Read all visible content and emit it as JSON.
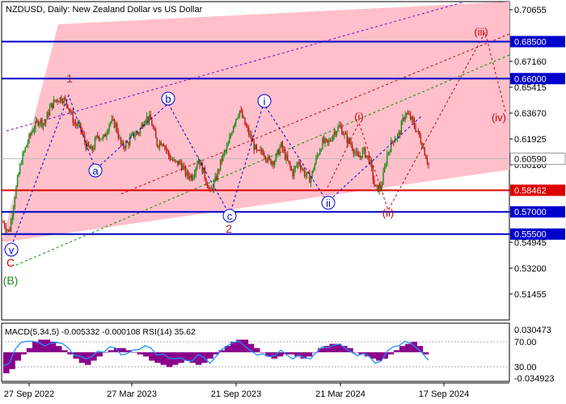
{
  "chart_data": {
    "type": "candlestick",
    "title": "NZDUSD, Daily:  New Zealand Dollar vs US Dollar",
    "price_axis": {
      "ticks": [
        "0.70655",
        "0.68500",
        "0.67160",
        "0.66000",
        "0.65415",
        "0.63670",
        "0.61925",
        "0.60590",
        "0.60180",
        "0.58462",
        "0.57000",
        "0.55500",
        "0.54945",
        "0.53200",
        "0.51455"
      ],
      "range": [
        0.497,
        0.712
      ]
    },
    "time_axis": {
      "ticks": [
        "27 Sep 2022",
        "27 Mar 2023",
        "21 Sep 2023",
        "21 Mar 2024",
        "17 Sep 2024"
      ]
    },
    "horizontal_levels": [
      {
        "value": 0.685,
        "label": "0.68500",
        "color": "#0000cc"
      },
      {
        "value": 0.66,
        "label": "0.66000",
        "color": "#0000cc"
      },
      {
        "value": 0.5846,
        "label": "0.58462",
        "color": "#dd0000"
      },
      {
        "value": 0.57,
        "label": "0.57000",
        "color": "#0000cc"
      },
      {
        "value": 0.555,
        "label": "0.55500",
        "color": "#0000cc"
      }
    ],
    "current_price": {
      "value": 0.6059,
      "label": "0.60590"
    },
    "wave_labels": [
      {
        "text": "1",
        "color": "#b22222"
      },
      {
        "text": "2",
        "color": "#b22222"
      },
      {
        "text": "C",
        "color": "#cc0000"
      },
      {
        "text": "(B)",
        "color": "#228b22"
      },
      {
        "text": "v",
        "color": "#0000cc"
      },
      {
        "text": "a",
        "color": "#0000cc"
      },
      {
        "text": "b",
        "color": "#0000cc"
      },
      {
        "text": "c",
        "color": "#0000cc"
      },
      {
        "text": "i",
        "color": "#0000cc"
      },
      {
        "text": "ii",
        "color": "#0000cc"
      },
      {
        "text": "(i)",
        "color": "#cc0000"
      },
      {
        "text": "(ii)",
        "color": "#cc0000"
      },
      {
        "text": "(iii)",
        "color": "#cc0000"
      },
      {
        "text": "(iv)",
        "color": "#cc0000"
      }
    ],
    "price_path": [
      0.563,
      0.556,
      0.582,
      0.604,
      0.616,
      0.626,
      0.632,
      0.63,
      0.641,
      0.646,
      0.647,
      0.642,
      0.63,
      0.627,
      0.615,
      0.611,
      0.622,
      0.619,
      0.631,
      0.629,
      0.614,
      0.616,
      0.622,
      0.624,
      0.634,
      0.632,
      0.616,
      0.618,
      0.608,
      0.603,
      0.603,
      0.595,
      0.594,
      0.606,
      0.596,
      0.583,
      0.592,
      0.606,
      0.614,
      0.63,
      0.639,
      0.628,
      0.619,
      0.609,
      0.611,
      0.604,
      0.605,
      0.615,
      0.605,
      0.596,
      0.604,
      0.596,
      0.592,
      0.606,
      0.617,
      0.616,
      0.624,
      0.628,
      0.62,
      0.615,
      0.606,
      0.611,
      0.605,
      0.585,
      0.587,
      0.609,
      0.619,
      0.622,
      0.637,
      0.633,
      0.625,
      0.615,
      0.602
    ],
    "macd": {
      "title": "MACD(5,34,5) -0.005332 -0.000108 RSI(14) 35.62",
      "axis_labels": [
        "0.030473",
        "70.00",
        "30.00",
        "-0.034923"
      ],
      "histogram": [
        -10,
        -8,
        -4,
        -1,
        2,
        5,
        6,
        6,
        5,
        3,
        1,
        -1,
        -3,
        -5,
        -6,
        -4,
        -2,
        0,
        1,
        2,
        2,
        1,
        0,
        -1,
        -2,
        -4,
        -5,
        -6,
        -7,
        -6,
        -5,
        -4,
        -5,
        -6,
        -5,
        -3,
        -1,
        1,
        3,
        5,
        6,
        6,
        4,
        2,
        0,
        -2,
        -3,
        -2,
        -1,
        -1,
        -2,
        -3,
        -2,
        0,
        2,
        3,
        4,
        4,
        3,
        2,
        0,
        -1,
        -2,
        -3,
        -4,
        -3,
        -1,
        1,
        3,
        4,
        5,
        3,
        -1
      ],
      "rsi": [
        25,
        30,
        55,
        68,
        70,
        70,
        68,
        62,
        66,
        68,
        66,
        58,
        45,
        43,
        38,
        42,
        52,
        50,
        60,
        58,
        45,
        48,
        54,
        55,
        62,
        58,
        45,
        47,
        40,
        38,
        40,
        35,
        34,
        46,
        40,
        30,
        42,
        55,
        62,
        68,
        70,
        60,
        52,
        45,
        47,
        42,
        44,
        54,
        45,
        38,
        45,
        40,
        38,
        50,
        60,
        58,
        63,
        65,
        56,
        50,
        44,
        48,
        42,
        30,
        34,
        52,
        60,
        62,
        70,
        66,
        58,
        48,
        35.62
      ]
    }
  }
}
